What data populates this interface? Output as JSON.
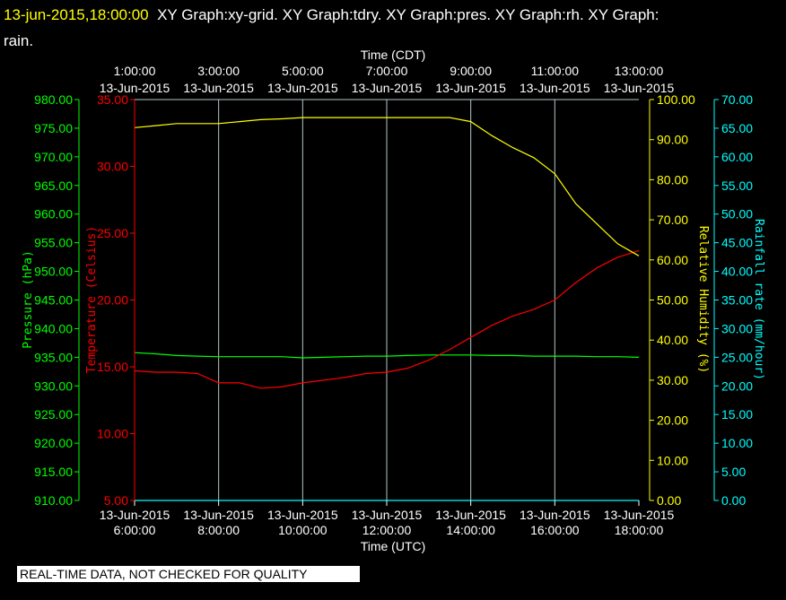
{
  "header": {
    "timestamp": "13-jun-2015,18:00:00",
    "graphs_line1": "XY Graph:xy-grid.  XY Graph:tdry.  XY Graph:pres.  XY Graph:rh.  XY Graph:",
    "graphs_line2": "rain."
  },
  "footer": {
    "note": "REAL-TIME DATA, NOT CHECKED FOR QUALITY"
  },
  "colors": {
    "pressure": "#00ff00",
    "temperature": "#ff0000",
    "humidity": "#ffff00",
    "rain": "#00ffff",
    "grid": "#b4c8c8"
  },
  "chart_data": {
    "type": "line",
    "x_bottom": {
      "title": "Time (UTC)",
      "range": [
        "13-Jun-2015 6:00:00",
        "13-Jun-2015 18:00:00"
      ],
      "ticks": [
        {
          "date": "13-Jun-2015",
          "time": "6:00:00"
        },
        {
          "date": "13-Jun-2015",
          "time": "8:00:00"
        },
        {
          "date": "13-Jun-2015",
          "time": "10:00:00"
        },
        {
          "date": "13-Jun-2015",
          "time": "12:00:00"
        },
        {
          "date": "13-Jun-2015",
          "time": "14:00:00"
        },
        {
          "date": "13-Jun-2015",
          "time": "16:00:00"
        },
        {
          "date": "13-Jun-2015",
          "time": "18:00:00"
        }
      ]
    },
    "x_top": {
      "title": "Time (CDT)",
      "ticks": [
        {
          "time": "1:00:00",
          "date": "13-Jun-2015"
        },
        {
          "time": "3:00:00",
          "date": "13-Jun-2015"
        },
        {
          "time": "5:00:00",
          "date": "13-Jun-2015"
        },
        {
          "time": "7:00:00",
          "date": "13-Jun-2015"
        },
        {
          "time": "9:00:00",
          "date": "13-Jun-2015"
        },
        {
          "time": "11:00:00",
          "date": "13-Jun-2015"
        },
        {
          "time": "13:00:00",
          "date": "13-Jun-2015"
        }
      ]
    },
    "axes": {
      "pressure": {
        "label": "Pressure (hPa)",
        "min": 910,
        "max": 980,
        "ticks": [
          "910.00",
          "915.00",
          "920.00",
          "925.00",
          "930.00",
          "935.00",
          "940.00",
          "945.00",
          "950.00",
          "955.00",
          "960.00",
          "965.00",
          "970.00",
          "975.00",
          "980.00"
        ]
      },
      "temperature": {
        "label": "Temperature (Celsius)",
        "min": 5,
        "max": 35,
        "ticks": [
          "5.00",
          "10.00",
          "15.00",
          "20.00",
          "25.00",
          "30.00",
          "35.00"
        ]
      },
      "humidity": {
        "label": "Relative Humidity (%)",
        "min": 0,
        "max": 100,
        "ticks": [
          "0.00",
          "10.00",
          "20.00",
          "30.00",
          "40.00",
          "50.00",
          "60.00",
          "70.00",
          "80.00",
          "90.00",
          "100.00"
        ]
      },
      "rain": {
        "label": "Rainfall rate (mm/hour)",
        "min": 0,
        "max": 70,
        "ticks": [
          "0.00",
          "5.00",
          "10.00",
          "15.00",
          "20.00",
          "25.00",
          "30.00",
          "35.00",
          "40.00",
          "45.00",
          "50.00",
          "55.00",
          "60.00",
          "65.00",
          "70.00"
        ]
      }
    },
    "grid": true,
    "x_hours_utc": [
      6,
      6.5,
      7,
      7.5,
      8,
      8.5,
      9,
      9.5,
      10,
      10.5,
      11,
      11.5,
      12,
      12.5,
      13,
      13.5,
      14,
      14.5,
      15,
      15.5,
      16,
      16.5,
      17,
      17.5,
      18
    ],
    "series": {
      "temperature": [
        14.7,
        14.6,
        14.6,
        14.5,
        13.8,
        13.8,
        13.4,
        13.5,
        13.8,
        14.0,
        14.2,
        14.5,
        14.6,
        14.9,
        15.5,
        16.3,
        17.2,
        18.1,
        18.8,
        19.3,
        20.0,
        21.3,
        22.4,
        23.2,
        23.7
      ],
      "humidity": [
        93,
        93.5,
        94,
        94,
        94,
        94.5,
        95,
        95.2,
        95.5,
        95.5,
        95.5,
        95.5,
        95.5,
        95.5,
        95.5,
        95.5,
        94.5,
        91,
        88,
        85.5,
        81.5,
        74,
        69,
        64,
        61
      ],
      "pressure": [
        935.8,
        935.6,
        935.3,
        935.2,
        935.1,
        935.1,
        935.1,
        935.1,
        934.9,
        935.0,
        935.1,
        935.2,
        935.2,
        935.3,
        935.4,
        935.4,
        935.4,
        935.3,
        935.3,
        935.2,
        935.2,
        935.2,
        935.1,
        935.1,
        935.0
      ],
      "rain": [
        0,
        0,
        0,
        0,
        0,
        0,
        0,
        0,
        0,
        0,
        0,
        0,
        0,
        0,
        0,
        0,
        0,
        0,
        0,
        0,
        0,
        0,
        0,
        0,
        0
      ]
    }
  }
}
